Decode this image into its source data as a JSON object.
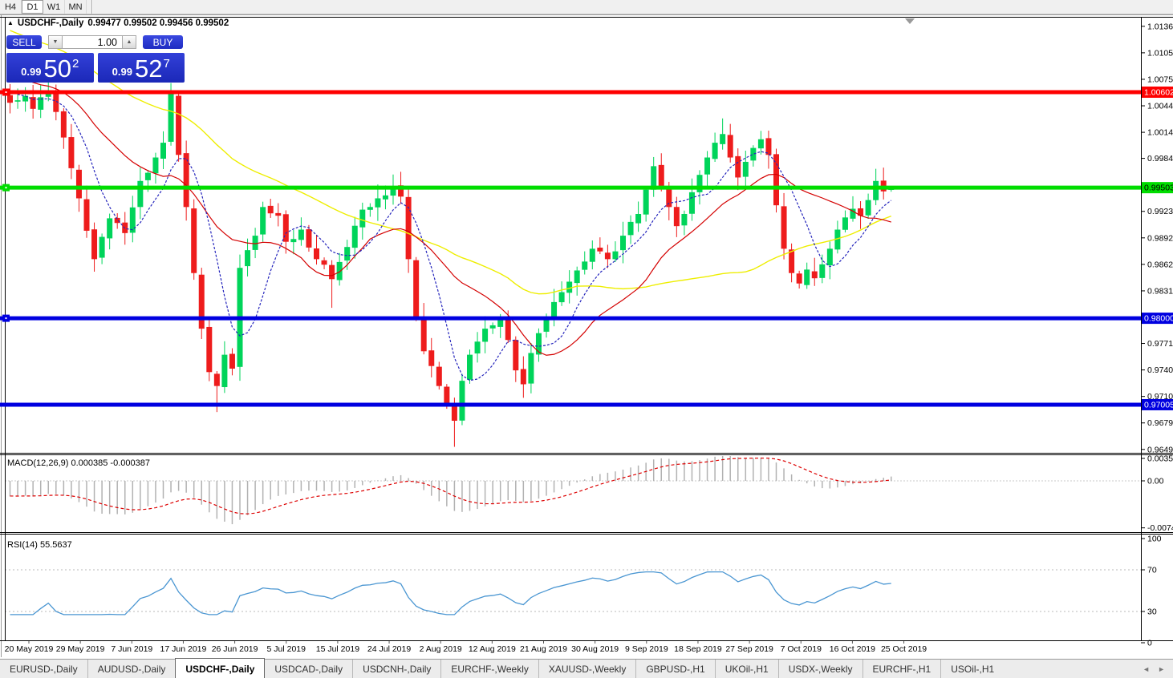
{
  "toolbar": {
    "timeframes": [
      "H4",
      "D1",
      "W1",
      "MN"
    ],
    "active": "D1"
  },
  "chart": {
    "collapse_arrow": "▲",
    "title_symbol": "USDCHF-,Daily",
    "title_quotes": "0.99477 0.99502 0.99456 0.99502"
  },
  "trade_panel": {
    "sell_label": "SELL",
    "buy_label": "BUY",
    "volume": "1.00",
    "spin_down": "▼",
    "spin_up": "▲",
    "sell_price": {
      "prefix": "0.99",
      "big": "50",
      "sup": "2"
    },
    "buy_price": {
      "prefix": "0.99",
      "big": "52",
      "sup": "7"
    }
  },
  "price_axis": {
    "ticks": [
      "1.01360",
      "1.01055",
      "1.00750",
      "1.00445",
      "1.00140",
      "0.99840",
      "0.99230",
      "0.98925",
      "0.98620",
      "0.98315",
      "0.97710",
      "0.97405",
      "0.97100",
      "0.96795",
      "0.96490"
    ],
    "badges": [
      {
        "text": "1.00602",
        "bg": "#fe0000",
        "fg": "#ffffff"
      },
      {
        "text": "0.99503",
        "bg": "#00dd00",
        "fg": "#000000"
      },
      {
        "text": "0.98000",
        "bg": "#0000e0",
        "fg": "#ffffff"
      },
      {
        "text": "0.97005",
        "bg": "#0000e0",
        "fg": "#ffffff"
      }
    ]
  },
  "macd_panel": {
    "label": "MACD(12,26,9) 0.000385 -0.000387",
    "scale": [
      "0.003574",
      "0.00",
      "-0.00749"
    ]
  },
  "rsi_panel": {
    "label": "RSI(14) 55.5637",
    "scale": [
      "100",
      "70",
      "30",
      "0"
    ]
  },
  "date_axis": [
    "20 May 2019",
    "29 May 2019",
    "7 Jun 2019",
    "17 Jun 2019",
    "26 Jun 2019",
    "5 Jul 2019",
    "15 Jul 2019",
    "24 Jul 2019",
    "2 Aug 2019",
    "12 Aug 2019",
    "21 Aug 2019",
    "30 Aug 2019",
    "9 Sep 2019",
    "18 Sep 2019",
    "27 Sep 2019",
    "7 Oct 2019",
    "16 Oct 2019",
    "25 Oct 2019"
  ],
  "tabs": {
    "items": [
      "EURUSD-,Daily",
      "AUDUSD-,Daily",
      "USDCHF-,Daily",
      "USDCAD-,Daily",
      "USDCNH-,Daily",
      "EURCHF-,Weekly",
      "XAUUSD-,Weekly",
      "GBPUSD-,H1",
      "UKOil-,H1",
      "USDX-,Weekly",
      "EURCHF-,H1",
      "USOil-,H1"
    ],
    "active_index": 2,
    "scroll_left": "◄",
    "scroll_right": "►"
  },
  "chart_data": {
    "type": "candlestick",
    "symbol": "USDCHF",
    "timeframe": "Daily",
    "bars": 116,
    "last_quote": {
      "open": 0.99477,
      "high": 0.99502,
      "low": 0.99456,
      "close": 0.99502
    },
    "y_axis_visible_range": [
      0.9649,
      1.0136
    ],
    "close_anchors": [
      [
        0,
        1.0048
      ],
      [
        2,
        1.0056
      ],
      [
        3,
        1.0041
      ],
      [
        5,
        1.0062
      ],
      [
        7,
        1.0008
      ],
      [
        9,
        0.9938
      ],
      [
        11,
        0.9868
      ],
      [
        13,
        0.9915
      ],
      [
        15,
        0.9898
      ],
      [
        17,
        0.9958
      ],
      [
        19,
        0.9985
      ],
      [
        20,
        1.0002
      ],
      [
        21,
        1.0058
      ],
      [
        22,
        0.9988
      ],
      [
        23,
        0.9928
      ],
      [
        24,
        0.9852
      ],
      [
        25,
        0.9788
      ],
      [
        26,
        0.9738
      ],
      [
        27,
        0.9722
      ],
      [
        28,
        0.9758
      ],
      [
        29,
        0.9742
      ],
      [
        30,
        0.9858
      ],
      [
        32,
        0.9895
      ],
      [
        33,
        0.9928
      ],
      [
        35,
        0.9918
      ],
      [
        36,
        0.9888
      ],
      [
        38,
        0.9902
      ],
      [
        40,
        0.9868
      ],
      [
        42,
        0.9845
      ],
      [
        44,
        0.9882
      ],
      [
        46,
        0.9925
      ],
      [
        48,
        0.9938
      ],
      [
        50,
        0.9952
      ],
      [
        51,
        0.994
      ],
      [
        52,
        0.9868
      ],
      [
        53,
        0.98
      ],
      [
        54,
        0.9762
      ],
      [
        55,
        0.9745
      ],
      [
        56,
        0.9722
      ],
      [
        57,
        0.9702
      ],
      [
        58,
        0.9682
      ],
      [
        59,
        0.9728
      ],
      [
        60,
        0.9758
      ],
      [
        62,
        0.9788
      ],
      [
        64,
        0.98
      ],
      [
        65,
        0.9775
      ],
      [
        66,
        0.974
      ],
      [
        67,
        0.9724
      ],
      [
        68,
        0.976
      ],
      [
        70,
        0.98
      ],
      [
        72,
        0.983
      ],
      [
        74,
        0.9855
      ],
      [
        76,
        0.988
      ],
      [
        78,
        0.9868
      ],
      [
        80,
        0.9895
      ],
      [
        82,
        0.992
      ],
      [
        83,
        0.9948
      ],
      [
        84,
        0.9975
      ],
      [
        85,
        0.995
      ],
      [
        86,
        0.9928
      ],
      [
        87,
        0.9906
      ],
      [
        88,
        0.992
      ],
      [
        89,
        0.9945
      ],
      [
        90,
        0.9965
      ],
      [
        91,
        0.9985
      ],
      [
        92,
        1.0002
      ],
      [
        93,
        1.0012
      ],
      [
        94,
        0.9985
      ],
      [
        95,
        0.9962
      ],
      [
        96,
        0.998
      ],
      [
        97,
        0.9996
      ],
      [
        98,
        1.0006
      ],
      [
        99,
        0.9988
      ],
      [
        100,
        0.993
      ],
      [
        101,
        0.988
      ],
      [
        102,
        0.9852
      ],
      [
        103,
        0.984
      ],
      [
        104,
        0.9856
      ],
      [
        105,
        0.9846
      ],
      [
        106,
        0.9862
      ],
      [
        107,
        0.988
      ],
      [
        108,
        0.9902
      ],
      [
        109,
        0.9916
      ],
      [
        110,
        0.9926
      ],
      [
        111,
        0.9918
      ],
      [
        112,
        0.9936
      ],
      [
        113,
        0.9958
      ],
      [
        114,
        0.9946
      ],
      [
        115,
        0.99502
      ]
    ],
    "wick_extremes": [
      {
        "bar": 5,
        "high": 1.0095
      },
      {
        "bar": 21,
        "high": 1.0066
      },
      {
        "bar": 27,
        "low": 0.9692
      },
      {
        "bar": 42,
        "low": 0.9812
      },
      {
        "bar": 58,
        "low": 0.9652
      },
      {
        "bar": 93,
        "high": 1.003
      },
      {
        "bar": 113,
        "high": 0.9972
      }
    ],
    "horizontal_lines": [
      {
        "price": 1.00602,
        "color": "#fe0000",
        "handle": true
      },
      {
        "price": 0.99503,
        "color": "#00dd00",
        "handle": true
      },
      {
        "price": 0.98,
        "color": "#0000e0",
        "handle": true
      },
      {
        "price": 0.97005,
        "color": "#0000e0",
        "handle": false
      }
    ],
    "moving_averages": [
      {
        "period": 7,
        "color": "#2424bc",
        "style": "dashed"
      },
      {
        "period": 18,
        "color": "#d40000",
        "style": "solid"
      },
      {
        "period": 45,
        "color": "#eeee00",
        "style": "solid"
      }
    ],
    "macd": {
      "fast": 12,
      "slow": 26,
      "signal": 9,
      "current": 0.000385,
      "signal_current": -0.000387,
      "scale_max": 0.003574,
      "scale_min": -0.00749
    },
    "rsi": {
      "period": 14,
      "current": 55.5637,
      "levels": [
        70,
        30
      ]
    }
  },
  "colors": {
    "bull": "#00d45a",
    "bear": "#ee1c1c",
    "macd_hist": "#b2b2b2",
    "macd_signal": "#dd0000",
    "rsi_line": "#4a96d2",
    "axis_text": "#000000"
  }
}
